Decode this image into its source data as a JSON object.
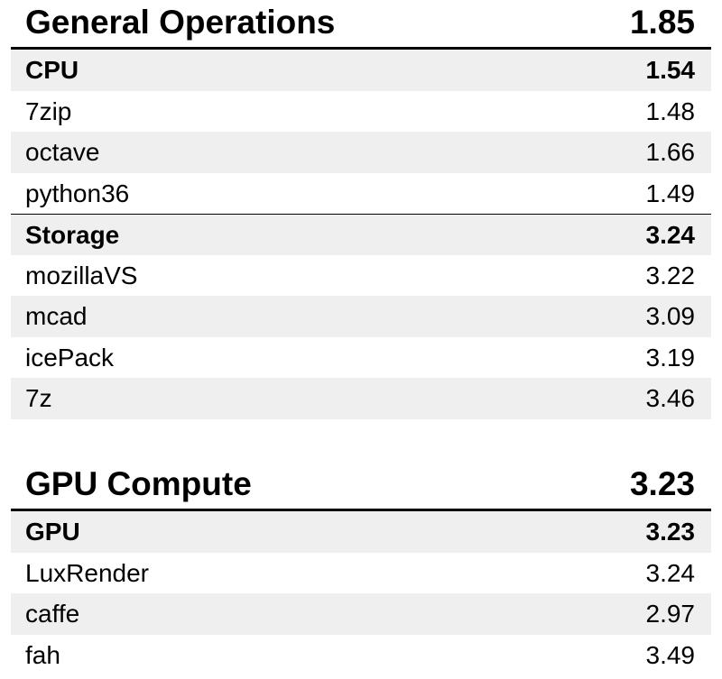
{
  "sections": [
    {
      "title": "General Operations",
      "score": "1.85",
      "rows": [
        {
          "name": "CPU",
          "value": "1.54"
        },
        {
          "name": "7zip",
          "value": "1.48"
        },
        {
          "name": "octave",
          "value": "1.66"
        },
        {
          "name": "python36",
          "value": "1.49"
        },
        {
          "name": "Storage",
          "value": "3.24"
        },
        {
          "name": "mozillaVS",
          "value": "3.22"
        },
        {
          "name": "mcad",
          "value": "3.09"
        },
        {
          "name": "icePack",
          "value": "3.19"
        },
        {
          "name": "7z",
          "value": "3.46"
        }
      ]
    },
    {
      "title": "GPU Compute",
      "score": "3.23",
      "rows": [
        {
          "name": "GPU",
          "value": "3.23"
        },
        {
          "name": "LuxRender",
          "value": "3.24"
        },
        {
          "name": "caffe",
          "value": "2.97"
        },
        {
          "name": "fah",
          "value": "3.49"
        }
      ]
    }
  ]
}
